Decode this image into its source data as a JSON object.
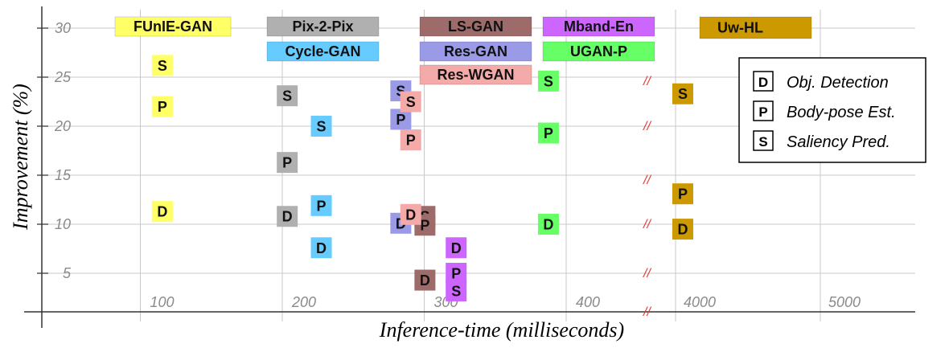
{
  "chart_data": {
    "type": "scatter",
    "ylabel": "Improvement (%)",
    "xlabel": "Inference-time (milliseconds)",
    "ylim": [
      0,
      32
    ],
    "yticks": [
      5,
      10,
      15,
      20,
      25,
      30
    ],
    "xticks": [
      "100",
      "200",
      "300",
      "400",
      "4000",
      "5000"
    ],
    "axis_break_symbol": "//",
    "legend": {
      "placement": "top-right",
      "entries": [
        {
          "key": "D",
          "label": "Obj. Detection"
        },
        {
          "key": "P",
          "label": "Body-pose Est."
        },
        {
          "key": "S",
          "label": "Saliency Pred."
        }
      ]
    },
    "models": [
      {
        "name": "FUnIE-GAN",
        "color": "#ffff66",
        "text_color": "#111111",
        "time_ms": 90,
        "points": [
          {
            "task": "S",
            "improvement": 26.2
          },
          {
            "task": "P",
            "improvement": 22.0
          },
          {
            "task": "D",
            "improvement": 11.3
          }
        ]
      },
      {
        "name": "Pix-2-Pix",
        "color": "#b0b0b0",
        "text_color": "#111111",
        "time_ms": 178,
        "points": [
          {
            "task": "S",
            "improvement": 23.1
          },
          {
            "task": "P",
            "improvement": 16.3
          },
          {
            "task": "D",
            "improvement": 10.8
          }
        ]
      },
      {
        "name": "Cycle-GAN",
        "color": "#66ccff",
        "text_color": "#111111",
        "time_ms": 202,
        "points": [
          {
            "task": "S",
            "improvement": 20.0
          },
          {
            "task": "P",
            "improvement": 11.9
          },
          {
            "task": "D",
            "improvement": 7.6
          }
        ]
      },
      {
        "name": "LS-GAN",
        "color": "#9e6b6b",
        "text_color": "#111111",
        "time_ms": 275,
        "points": [
          {
            "task": "S",
            "improvement": 10.8
          },
          {
            "task": "P",
            "improvement": 9.9
          },
          {
            "task": "D",
            "improvement": 4.3
          }
        ]
      },
      {
        "name": "Res-GAN",
        "color": "#9a9ae6",
        "text_color": "#111111",
        "time_ms": 258,
        "points": [
          {
            "task": "S",
            "improvement": 23.6
          },
          {
            "task": "P",
            "improvement": 20.7
          },
          {
            "task": "D",
            "improvement": 10.1
          }
        ]
      },
      {
        "name": "Res-WGAN",
        "color": "#f5aaaa",
        "text_color": "#111111",
        "time_ms": 265,
        "points": [
          {
            "task": "S",
            "improvement": 22.5
          },
          {
            "task": "P",
            "improvement": 18.6
          },
          {
            "task": "D",
            "improvement": 11.0
          }
        ]
      },
      {
        "name": "Mband-En",
        "color": "#cc66ff",
        "text_color": "#111111",
        "time_ms": 297,
        "points": [
          {
            "task": "D",
            "improvement": 7.6
          },
          {
            "task": "P",
            "improvement": 5.0
          },
          {
            "task": "S",
            "improvement": 3.2
          }
        ]
      },
      {
        "name": "UGAN-P",
        "color": "#66ff66",
        "text_color": "#111111",
        "time_ms": 362,
        "points": [
          {
            "task": "S",
            "improvement": 24.6
          },
          {
            "task": "P",
            "improvement": 19.3
          },
          {
            "task": "D",
            "improvement": 10.0
          }
        ]
      },
      {
        "name": "Uw-HL",
        "color": "#cc9900",
        "text_color": "#111111",
        "time_ms": 4050,
        "points": [
          {
            "task": "S",
            "improvement": 23.3
          },
          {
            "task": "P",
            "improvement": 13.1
          },
          {
            "task": "D",
            "improvement": 9.5
          }
        ]
      }
    ]
  }
}
